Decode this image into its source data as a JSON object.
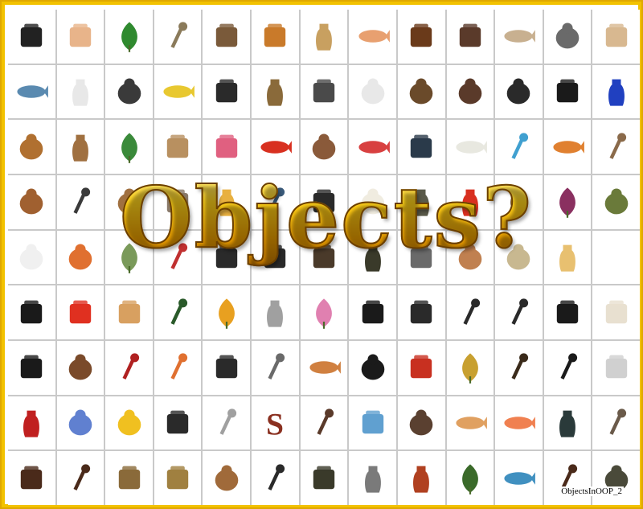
{
  "title": "Objects?",
  "caption": "ObjectsInOOP_2",
  "colors": {
    "frame": "#f2c200",
    "title_gold": "#f0b000",
    "title_outline": "#6b3f00",
    "grid_line": "#c9c9c9"
  },
  "objects": [
    {
      "icon": "camera-icon",
      "color": "#222222"
    },
    {
      "icon": "hand-icon",
      "color": "#e8b48a"
    },
    {
      "icon": "clover-icon",
      "color": "#2f8a2f"
    },
    {
      "icon": "twig-icon",
      "color": "#8a7a5a"
    },
    {
      "icon": "pyramid-icon",
      "color": "#7a5a3a"
    },
    {
      "icon": "butterfly-icon",
      "color": "#c97a2a"
    },
    {
      "icon": "bottle-icon",
      "color": "#c8a060"
    },
    {
      "icon": "bone-icon",
      "color": "#e8a070"
    },
    {
      "icon": "clock-icon",
      "color": "#6a3a1a"
    },
    {
      "icon": "padlock-icon",
      "color": "#5a3a2a"
    },
    {
      "icon": "antler-icon",
      "color": "#c8b090"
    },
    {
      "icon": "armadillo-icon",
      "color": "#6a6a6a"
    },
    {
      "icon": "map-icon",
      "color": "#d8b890"
    },
    {
      "icon": "jet-icon",
      "color": "#5a8ab0"
    },
    {
      "icon": "baby-bottle-icon",
      "color": "#e8e8e8"
    },
    {
      "icon": "rabbit-icon",
      "color": "#3a3a3a"
    },
    {
      "icon": "banana-icon",
      "color": "#e8c830"
    },
    {
      "icon": "bathtub-icon",
      "color": "#2a2a2a"
    },
    {
      "icon": "bell-icon",
      "color": "#8a6a3a"
    },
    {
      "icon": "binoculars-icon",
      "color": "#4a4a4a"
    },
    {
      "icon": "bird-icon",
      "color": "#e8e8e8"
    },
    {
      "icon": "birdhouse-icon",
      "color": "#6a4a2a"
    },
    {
      "icon": "bear-icon",
      "color": "#5a3a2a"
    },
    {
      "icon": "cat-icon",
      "color": "#2a2a2a"
    },
    {
      "icon": "telephone-icon",
      "color": "#1a1a1a"
    },
    {
      "icon": "cup-icon",
      "color": "#2040c0"
    },
    {
      "icon": "muffin-icon",
      "color": "#b07030"
    },
    {
      "icon": "dresser-icon",
      "color": "#a07040"
    },
    {
      "icon": "cactus-icon",
      "color": "#3a8a3a"
    },
    {
      "icon": "sack-icon",
      "color": "#b89060"
    },
    {
      "icon": "chair-icon",
      "color": "#e06080"
    },
    {
      "icon": "pepper-icon",
      "color": "#d83020"
    },
    {
      "icon": "chipmunk-icon",
      "color": "#8a5a3a"
    },
    {
      "icon": "hanger-icon",
      "color": "#d84040"
    },
    {
      "icon": "pot-icon",
      "color": "#2a3a4a"
    },
    {
      "icon": "driftwood-icon",
      "color": "#e8e8e0"
    },
    {
      "icon": "toothbrush-icon",
      "color": "#40a0d0"
    },
    {
      "icon": "croissant-icon",
      "color": "#e08030"
    },
    {
      "icon": "cane-icon",
      "color": "#8a6a4a"
    },
    {
      "icon": "deer-icon",
      "color": "#a06030"
    },
    {
      "icon": "lamp-icon",
      "color": "#3a3a3a"
    },
    {
      "icon": "dog-icon",
      "color": "#a07040"
    },
    {
      "icon": "arch-icon",
      "color": "#8a7a6a"
    },
    {
      "icon": "dress-icon",
      "color": "#e8b040"
    },
    {
      "icon": "broom-icon",
      "color": "#3a5a7a"
    },
    {
      "icon": "headphones-icon",
      "color": "#2a2a2a"
    },
    {
      "icon": "egg-icon",
      "color": "#f0ece0"
    },
    {
      "icon": "bust-icon",
      "color": "#5a5a4a"
    },
    {
      "icon": "hydrant-icon",
      "color": "#d83020"
    },
    {
      "icon": "pinecone-icon",
      "color": "#6a4a2a"
    },
    {
      "icon": "tulip-icon",
      "color": "#8a3060"
    },
    {
      "icon": "frog-icon",
      "color": "#6a7a3a"
    },
    {
      "icon": "ghost-icon",
      "color": "#f0f0f0"
    },
    {
      "icon": "gingerbread-icon",
      "color": "#e07030"
    },
    {
      "icon": "leaf-icon",
      "color": "#7a9a5a"
    },
    {
      "icon": "plunger-icon",
      "color": "#c03030"
    },
    {
      "icon": "phone-icon",
      "color": "#2a2a2a"
    },
    {
      "icon": "vest-icon",
      "color": "#2a2a2a"
    },
    {
      "icon": "hat-icon",
      "color": "#4a3a2a"
    },
    {
      "icon": "vase-icon",
      "color": "#3a3a2a"
    },
    {
      "icon": "horseshoe-icon",
      "color": "#6a6a6a"
    },
    {
      "icon": "onion-icon",
      "color": "#c08050"
    },
    {
      "icon": "skull-icon",
      "color": "#c8b890"
    },
    {
      "icon": "icecream-icon",
      "color": "#e8c070"
    },
    {
      "icon": "blank-icon",
      "color": "#ffffff"
    },
    {
      "icon": "iron-icon",
      "color": "#1a1a1a"
    },
    {
      "icon": "juicer-icon",
      "color": "#e03020"
    },
    {
      "icon": "chess-knight-icon",
      "color": "#d8a060"
    },
    {
      "icon": "table-lamp-icon",
      "color": "#2a5a2a"
    },
    {
      "icon": "maple-leaf-icon",
      "color": "#e8a020"
    },
    {
      "icon": "lighter-icon",
      "color": "#a0a0a0"
    },
    {
      "icon": "flower-icon",
      "color": "#e080b0"
    },
    {
      "icon": "fan-icon",
      "color": "#1a1a1a"
    },
    {
      "icon": "typewriter-icon",
      "color": "#2a2a2a"
    },
    {
      "icon": "microphone-icon",
      "color": "#2a2a2a"
    },
    {
      "icon": "microscope-icon",
      "color": "#2a2a2a"
    },
    {
      "icon": "boot-icon",
      "color": "#1a1a1a"
    },
    {
      "icon": "mouse-icon",
      "color": "#e8e0d0"
    },
    {
      "icon": "box-icon",
      "color": "#1a1a1a"
    },
    {
      "icon": "ox-skull-icon",
      "color": "#7a4a2a"
    },
    {
      "icon": "paddle-icon",
      "color": "#b02020"
    },
    {
      "icon": "paint-roller-icon",
      "color": "#e07030"
    },
    {
      "icon": "pants-icon",
      "color": "#2a2a2a"
    },
    {
      "icon": "parking-meter-icon",
      "color": "#6a6a6a"
    },
    {
      "icon": "peanut-icon",
      "color": "#d08040"
    },
    {
      "icon": "penguin-icon",
      "color": "#1a1a1a"
    },
    {
      "icon": "foot-icon",
      "color": "#c83020"
    },
    {
      "icon": "pineapple-icon",
      "color": "#c8a030"
    },
    {
      "icon": "pipe-icon",
      "color": "#3a2a1a"
    },
    {
      "icon": "toilet-plunger-icon",
      "color": "#1a1a1a"
    },
    {
      "icon": "propeller-icon",
      "color": "#d0d0d0"
    },
    {
      "icon": "urn-icon",
      "color": "#c02020"
    },
    {
      "icon": "buddha-icon",
      "color": "#6080d0"
    },
    {
      "icon": "duck-icon",
      "color": "#f0c020"
    },
    {
      "icon": "glove-icon",
      "color": "#2a2a2a"
    },
    {
      "icon": "ruler-icon",
      "color": "#a0a0a0"
    },
    {
      "icon": "letter-s-icon",
      "color": "#8a3020"
    },
    {
      "icon": "saw-icon",
      "color": "#5a3a2a"
    },
    {
      "icon": "scale-icon",
      "color": "#60a0d0"
    },
    {
      "icon": "seal-icon",
      "color": "#5a4030"
    },
    {
      "icon": "shell-icon",
      "color": "#e0a060"
    },
    {
      "icon": "shrimp-icon",
      "color": "#f08050"
    },
    {
      "icon": "soap-bottle-icon",
      "color": "#2a3a3a"
    },
    {
      "icon": "pen-icon",
      "color": "#6a5a4a"
    },
    {
      "icon": "side-table-icon",
      "color": "#4a2a1a"
    },
    {
      "icon": "sword-icon",
      "color": "#4a2a1a"
    },
    {
      "icon": "tank-icon",
      "color": "#8a6a3a"
    },
    {
      "icon": "faucet-icon",
      "color": "#a08040"
    },
    {
      "icon": "teddy-bear-icon",
      "color": "#a06a3a"
    },
    {
      "icon": "telescope-icon",
      "color": "#2a2a2a"
    },
    {
      "icon": "tv-icon",
      "color": "#3a3a2a"
    },
    {
      "icon": "gravestone-icon",
      "color": "#7a7a7a"
    },
    {
      "icon": "totem-icon",
      "color": "#b04020"
    },
    {
      "icon": "tree-icon",
      "color": "#3a6a2a"
    },
    {
      "icon": "fish-icon",
      "color": "#4090c0"
    },
    {
      "icon": "trowel-icon",
      "color": "#4a2a1a"
    },
    {
      "icon": "tortoise-icon",
      "color": "#4a4a3a"
    }
  ]
}
